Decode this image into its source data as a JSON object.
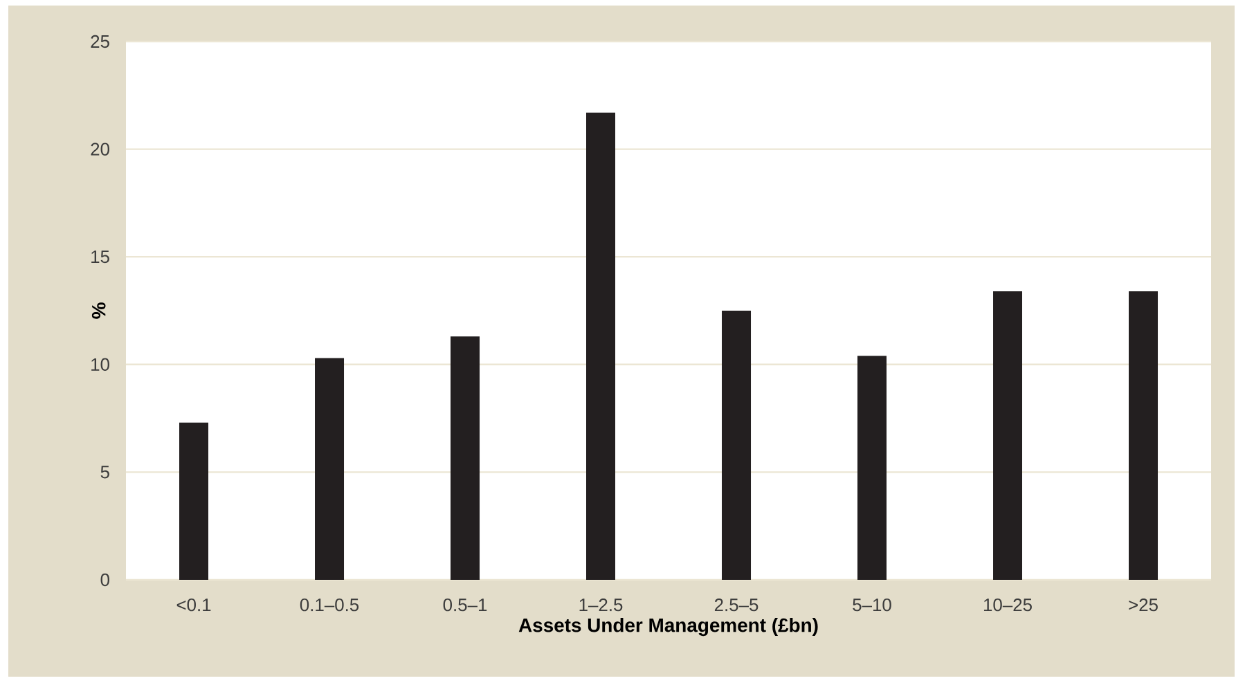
{
  "chart_data": {
    "type": "bar",
    "xlabel": "Assets Under Management (£bn)",
    "ylabel": "%",
    "categories": [
      "<0.1",
      "0.1–0.5",
      "0.5–1",
      "1–2.5",
      "2.5–5",
      "5–10",
      "10–25",
      ">25"
    ],
    "values": [
      7.3,
      10.3,
      11.3,
      21.7,
      12.5,
      10.4,
      13.4,
      13.4
    ],
    "color": "#231f20",
    "ylim": [
      0,
      25
    ],
    "yticks": [
      0,
      5,
      10,
      15,
      20,
      25
    ],
    "grid": "y"
  }
}
